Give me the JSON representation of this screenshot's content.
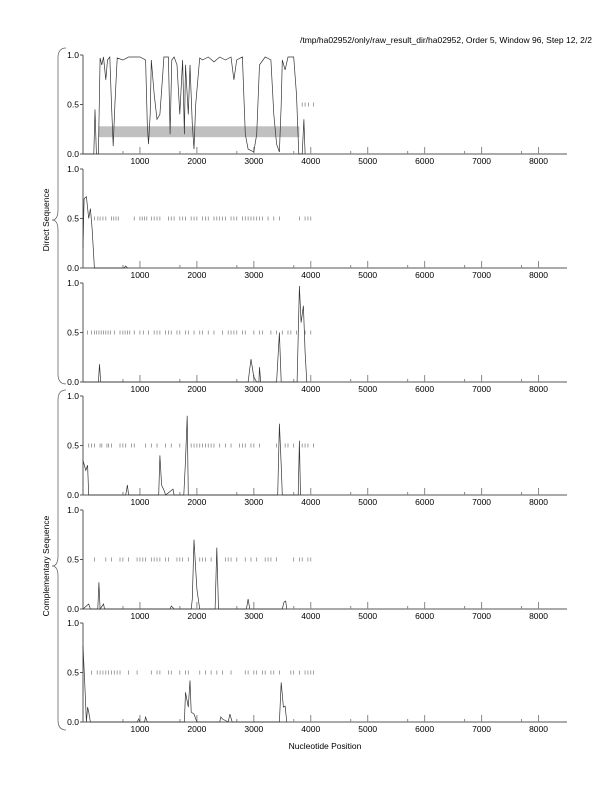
{
  "title": "/tmp/ha02952/only/raw_result_dir/ha02952, Order 5, Window 96, Step 12, 2/2",
  "xlabel": "Nucleotide Position",
  "group_labels": [
    "Direct Sequence",
    "Complementary Sequence"
  ],
  "colors": {
    "line": "#333333",
    "marker": "#888888",
    "region": "#c0c0c0",
    "axis": "#555555"
  },
  "chart_data": {
    "type": "line",
    "xlim": [
      0,
      8500
    ],
    "ylim": [
      0,
      1
    ],
    "xticks": [
      1000,
      2000,
      3000,
      4000,
      5000,
      6000,
      7000,
      8000
    ],
    "xtick_labels": [
      "1000",
      "2000",
      "3000",
      "4000",
      "5000",
      "6000",
      "7000",
      "8000"
    ],
    "ytick_labels": [
      "0.0",
      "0.5",
      "1.0"
    ],
    "panels": [
      {
        "group": "Direct Sequence",
        "regions": [
          {
            "x0": 270,
            "x1": 3800,
            "y0": 0.17,
            "y1": 0.28
          }
        ],
        "markers": [
          3850,
          3900,
          3960,
          4050
        ],
        "points": [
          [
            0,
            0
          ],
          [
            190,
            0
          ],
          [
            210,
            0.45
          ],
          [
            235,
            0
          ],
          [
            270,
            0
          ],
          [
            300,
            0.97
          ],
          [
            330,
            0.9
          ],
          [
            360,
            0.98
          ],
          [
            400,
            0.75
          ],
          [
            430,
            0.95
          ],
          [
            470,
            0.98
          ],
          [
            500,
            0.5
          ],
          [
            530,
            0.08
          ],
          [
            560,
            0.5
          ],
          [
            600,
            0.97
          ],
          [
            700,
            0.95
          ],
          [
            800,
            0.98
          ],
          [
            1000,
            0.98
          ],
          [
            1100,
            0.95
          ],
          [
            1130,
            0.3
          ],
          [
            1150,
            0.1
          ],
          [
            1180,
            0.4
          ],
          [
            1200,
            0.95
          ],
          [
            1250,
            0.6
          ],
          [
            1300,
            0.35
          ],
          [
            1350,
            0.4
          ],
          [
            1400,
            0.8
          ],
          [
            1420,
            0.98
          ],
          [
            1500,
            0.98
          ],
          [
            1530,
            0.2
          ],
          [
            1560,
            0.95
          ],
          [
            1600,
            0.98
          ],
          [
            1650,
            0.9
          ],
          [
            1700,
            0.4
          ],
          [
            1750,
            0.95
          ],
          [
            1780,
            0.2
          ],
          [
            1800,
            0.9
          ],
          [
            1850,
            0.4
          ],
          [
            1880,
            0.9
          ],
          [
            1920,
            0.3
          ],
          [
            1950,
            0.05
          ],
          [
            1980,
            0.5
          ],
          [
            2050,
            0.97
          ],
          [
            2100,
            0.95
          ],
          [
            2200,
            0.98
          ],
          [
            2300,
            0.93
          ],
          [
            2400,
            0.98
          ],
          [
            2500,
            0.95
          ],
          [
            2600,
            0.98
          ],
          [
            2650,
            0.75
          ],
          [
            2700,
            0.95
          ],
          [
            2800,
            0.98
          ],
          [
            2850,
            0.2
          ],
          [
            2900,
            0.05
          ],
          [
            3000,
            0.02
          ],
          [
            3050,
            0.2
          ],
          [
            3100,
            0.9
          ],
          [
            3200,
            0.98
          ],
          [
            3300,
            0.95
          ],
          [
            3350,
            0.4
          ],
          [
            3400,
            0.1
          ],
          [
            3450,
            0.02
          ],
          [
            3480,
            0.5
          ],
          [
            3500,
            0.95
          ],
          [
            3550,
            0.85
          ],
          [
            3600,
            0.98
          ],
          [
            3700,
            0.98
          ],
          [
            3750,
            0.6
          ],
          [
            3790,
            0
          ],
          [
            3850,
            0
          ],
          [
            3880,
            0.35
          ],
          [
            3900,
            0
          ]
        ]
      },
      {
        "group": "Direct Sequence",
        "markers": [
          200,
          260,
          300,
          350,
          400,
          500,
          540,
          580,
          620,
          900,
          1000,
          1040,
          1080,
          1120,
          1200,
          1250,
          1300,
          1350,
          1500,
          1550,
          1600,
          1700,
          1750,
          1800,
          1900,
          1950,
          2000,
          2100,
          2150,
          2200,
          2300,
          2350,
          2400,
          2450,
          2500,
          2600,
          2650,
          2700,
          2800,
          2850,
          2900,
          2950,
          3000,
          3050,
          3100,
          3150,
          3250,
          3350,
          3450,
          3800,
          3900,
          3950,
          4000
        ],
        "points": [
          [
            0,
            0.2
          ],
          [
            20,
            0.7
          ],
          [
            60,
            0.72
          ],
          [
            100,
            0.5
          ],
          [
            130,
            0.6
          ],
          [
            160,
            0.4
          ],
          [
            200,
            0
          ],
          [
            720,
            0
          ],
          [
            750,
            0.02
          ],
          [
            780,
            0
          ]
        ]
      },
      {
        "group": "Direct Sequence",
        "markers": [
          80,
          150,
          200,
          240,
          280,
          320,
          360,
          400,
          440,
          480,
          550,
          650,
          700,
          740,
          780,
          820,
          900,
          1000,
          1060,
          1150,
          1250,
          1300,
          1350,
          1450,
          1500,
          1550,
          1650,
          1700,
          1800,
          1850,
          1950,
          2050,
          2100,
          2200,
          2300,
          2450,
          2550,
          2600,
          2650,
          2700,
          2800,
          2850,
          3000,
          3100,
          3150,
          3300,
          3400,
          3500,
          3600,
          3650,
          3750,
          3900,
          4000
        ],
        "points": [
          [
            0,
            0
          ],
          [
            270,
            0
          ],
          [
            290,
            0.18
          ],
          [
            310,
            0
          ],
          [
            2900,
            0
          ],
          [
            2950,
            0.23
          ],
          [
            3000,
            0.05
          ],
          [
            3050,
            0
          ],
          [
            3090,
            0
          ],
          [
            3100,
            0.15
          ],
          [
            3120,
            0
          ],
          [
            3400,
            0
          ],
          [
            3450,
            0.5
          ],
          [
            3480,
            0
          ],
          [
            3760,
            0
          ],
          [
            3800,
            0.97
          ],
          [
            3830,
            0.6
          ],
          [
            3870,
            0.77
          ],
          [
            3900,
            0.3
          ],
          [
            3930,
            0
          ]
        ]
      },
      {
        "group": "Complementary Sequence",
        "markers": [
          100,
          150,
          200,
          300,
          330,
          420,
          450,
          500,
          650,
          700,
          750,
          850,
          900,
          1100,
          1200,
          1300,
          1450,
          1550,
          1700,
          1900,
          1950,
          2000,
          2050,
          2100,
          2150,
          2200,
          2250,
          2300,
          2400,
          2500,
          2600,
          2750,
          2800,
          2850,
          2950,
          3000,
          3100,
          3400,
          3550,
          3600,
          3700,
          3850,
          3900,
          3950,
          4050
        ],
        "points": [
          [
            0,
            0.35
          ],
          [
            50,
            0.25
          ],
          [
            80,
            0.3
          ],
          [
            100,
            0
          ],
          [
            750,
            0
          ],
          [
            780,
            0.1
          ],
          [
            800,
            0
          ],
          [
            1330,
            0
          ],
          [
            1350,
            0.4
          ],
          [
            1380,
            0.1
          ],
          [
            1420,
            0.05
          ],
          [
            1450,
            0
          ],
          [
            1580,
            0.06
          ],
          [
            1600,
            0
          ],
          [
            1770,
            0
          ],
          [
            1800,
            0.35
          ],
          [
            1830,
            0.8
          ],
          [
            1850,
            0
          ],
          [
            3420,
            0
          ],
          [
            3450,
            0.72
          ],
          [
            3480,
            0.3
          ],
          [
            3500,
            0
          ],
          [
            3780,
            0
          ],
          [
            3800,
            0.55
          ],
          [
            3820,
            0
          ]
        ]
      },
      {
        "group": "Complementary Sequence",
        "markers": [
          200,
          400,
          500,
          650,
          700,
          800,
          950,
          1000,
          1050,
          1100,
          1200,
          1250,
          1300,
          1350,
          1450,
          1500,
          1650,
          1700,
          1750,
          1850,
          2050,
          2100,
          2150,
          2250,
          2500,
          2550,
          2600,
          2700,
          2850,
          2950,
          3050,
          3200,
          3250,
          3300,
          3400,
          3700,
          3800,
          3850,
          3950,
          4000
        ],
        "points": [
          [
            0,
            0
          ],
          [
            100,
            0.05
          ],
          [
            130,
            0
          ],
          [
            260,
            0
          ],
          [
            280,
            0.27
          ],
          [
            300,
            0
          ],
          [
            360,
            0.05
          ],
          [
            380,
            0
          ],
          [
            1530,
            0
          ],
          [
            1550,
            0.03
          ],
          [
            1600,
            0
          ],
          [
            1900,
            0
          ],
          [
            1920,
            0.1
          ],
          [
            1950,
            0.7
          ],
          [
            1980,
            0.4
          ],
          [
            2000,
            0.2
          ],
          [
            2050,
            0
          ],
          [
            2320,
            0
          ],
          [
            2350,
            0.62
          ],
          [
            2380,
            0
          ],
          [
            2870,
            0
          ],
          [
            2900,
            0.1
          ],
          [
            2930,
            0
          ],
          [
            3500,
            0
          ],
          [
            3530,
            0.07
          ],
          [
            3560,
            0.08
          ],
          [
            3580,
            0
          ]
        ]
      },
      {
        "group": "Complementary Sequence",
        "markers": [
          150,
          250,
          300,
          350,
          400,
          450,
          500,
          550,
          600,
          650,
          800,
          950,
          1200,
          1300,
          1350,
          1500,
          1550,
          1700,
          1800,
          1850,
          2050,
          2150,
          2250,
          2350,
          2450,
          2600,
          2850,
          2900,
          3000,
          3050,
          3150,
          3200,
          3300,
          3350,
          3450,
          3650,
          3700,
          3800,
          3900,
          3950,
          4000,
          4050
        ],
        "points": [
          [
            0,
            0.77
          ],
          [
            30,
            0.4
          ],
          [
            60,
            0
          ],
          [
            80,
            0.15
          ],
          [
            100,
            0.1
          ],
          [
            130,
            0
          ],
          [
            950,
            0
          ],
          [
            980,
            0.03
          ],
          [
            1000,
            0
          ],
          [
            1080,
            0
          ],
          [
            1100,
            0.05
          ],
          [
            1130,
            0
          ],
          [
            1780,
            0
          ],
          [
            1800,
            0.3
          ],
          [
            1850,
            0.15
          ],
          [
            1880,
            0.42
          ],
          [
            1900,
            0.1
          ],
          [
            1950,
            0.08
          ],
          [
            2000,
            0
          ],
          [
            2400,
            0
          ],
          [
            2420,
            0.05
          ],
          [
            2450,
            0.03
          ],
          [
            2550,
            0
          ],
          [
            2580,
            0.08
          ],
          [
            2620,
            0
          ],
          [
            3450,
            0
          ],
          [
            3480,
            0.4
          ],
          [
            3520,
            0.15
          ],
          [
            3550,
            0.16
          ],
          [
            3580,
            0
          ]
        ]
      }
    ]
  }
}
